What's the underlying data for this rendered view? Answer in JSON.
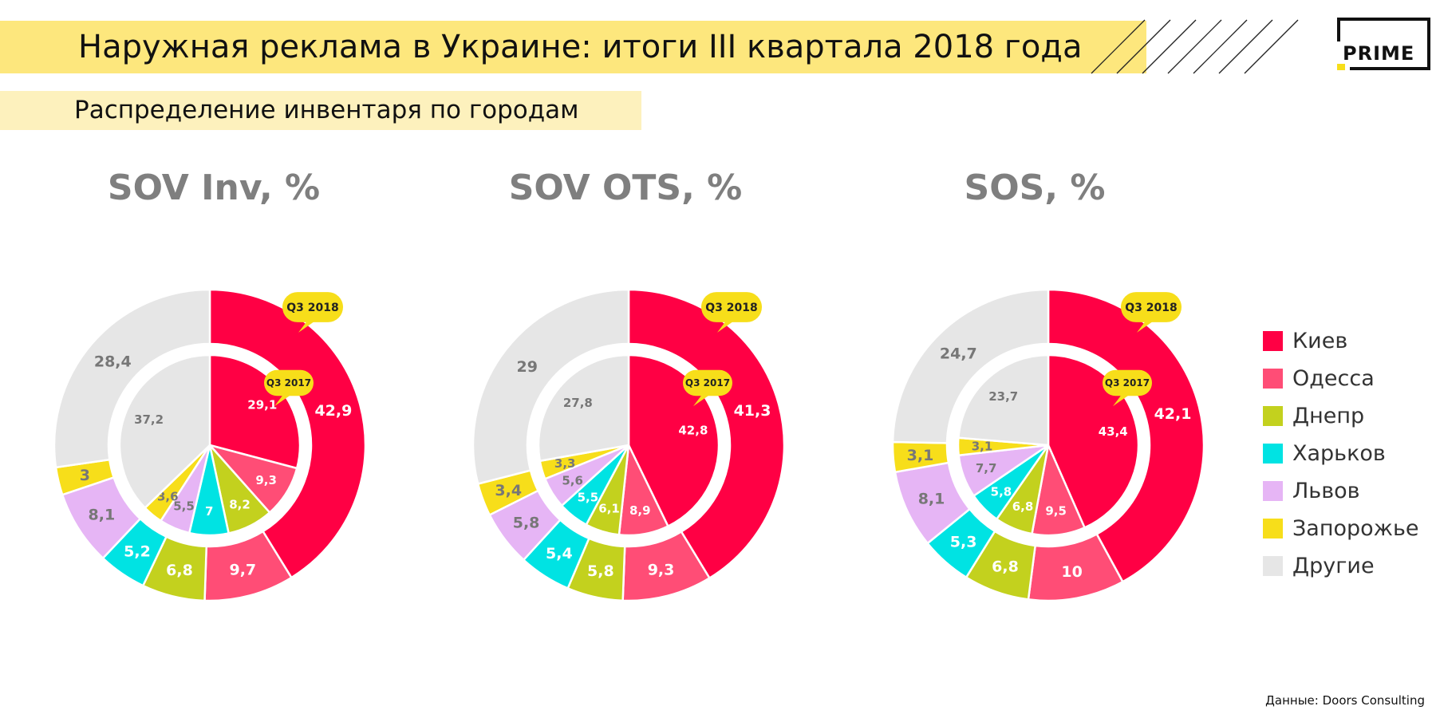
{
  "header": {
    "title": "Наружная реклама в Украине: итоги III квартала 2018 года",
    "subtitle": "Распределение инвентаря по городам",
    "logo": "PRIME"
  },
  "colors": {
    "Киев": "#ff0044",
    "Одесса": "#ff4d76",
    "Днепр": "#c3d11e",
    "Харьков": "#00e3e3",
    "Львов": "#e6b5f5",
    "Запорожье": "#f7de1a",
    "Другие": "#e6e6e6"
  },
  "chart_data": [
    {
      "type": "pie",
      "title": "SOV Inv, %",
      "categories": [
        "Киев",
        "Одесса",
        "Днепр",
        "Харьков",
        "Львов",
        "Запорожье",
        "Другие"
      ],
      "series": [
        {
          "name": "Q3 2018",
          "values": [
            42.9,
            9.7,
            6.8,
            5.2,
            8.1,
            3,
            28.4
          ],
          "labels": [
            "42,9",
            "9,7",
            "6,8",
            "5,2",
            "8,1",
            "3",
            "28,4"
          ]
        },
        {
          "name": "Q3 2017",
          "values": [
            29.1,
            9.3,
            8.2,
            7,
            5.5,
            3.6,
            37.2
          ],
          "labels": [
            "29,1",
            "9,3",
            "8,2",
            "7",
            "5,5",
            "3,6",
            "37,2"
          ]
        }
      ]
    },
    {
      "type": "pie",
      "title": "SOV OTS, %",
      "categories": [
        "Киев",
        "Одесса",
        "Днепр",
        "Харьков",
        "Львов",
        "Запорожье",
        "Другие"
      ],
      "series": [
        {
          "name": "Q3 2018",
          "values": [
            41.3,
            9.3,
            5.8,
            5.4,
            5.8,
            3.4,
            29
          ],
          "labels": [
            "41,3",
            "9,3",
            "5,8",
            "5,4",
            "5,8",
            "3,4",
            "29"
          ]
        },
        {
          "name": "Q3 2017",
          "values": [
            42.8,
            8.9,
            6.1,
            5.5,
            5.6,
            3.3,
            27.8
          ],
          "labels": [
            "42,8",
            "8,9",
            "6,1",
            "5,5",
            "5,6",
            "3,3",
            "27,8"
          ]
        }
      ]
    },
    {
      "type": "pie",
      "title": "SOS, %",
      "categories": [
        "Киев",
        "Одесса",
        "Днепр",
        "Харьков",
        "Львов",
        "Запорожье",
        "Другие"
      ],
      "series": [
        {
          "name": "Q3 2018",
          "values": [
            42.1,
            10,
            6.8,
            5.3,
            8.1,
            3.1,
            24.7
          ],
          "labels": [
            "42,1",
            "10",
            "6,8",
            "5,3",
            "8,1",
            "3,1",
            "24,7"
          ]
        },
        {
          "name": "Q3 2017",
          "values": [
            43.4,
            9.5,
            6.8,
            5.8,
            7.7,
            3.1,
            23.7
          ],
          "labels": [
            "43,4",
            "9,5",
            "6,8",
            "5,8",
            "7,7",
            "3,1",
            "23,7"
          ]
        }
      ]
    }
  ],
  "legend": [
    "Киев",
    "Одесса",
    "Днепр",
    "Харьков",
    "Львов",
    "Запорожье",
    "Другие"
  ],
  "source": {
    "label": "Данные:",
    "value": "Doors Consulting"
  }
}
